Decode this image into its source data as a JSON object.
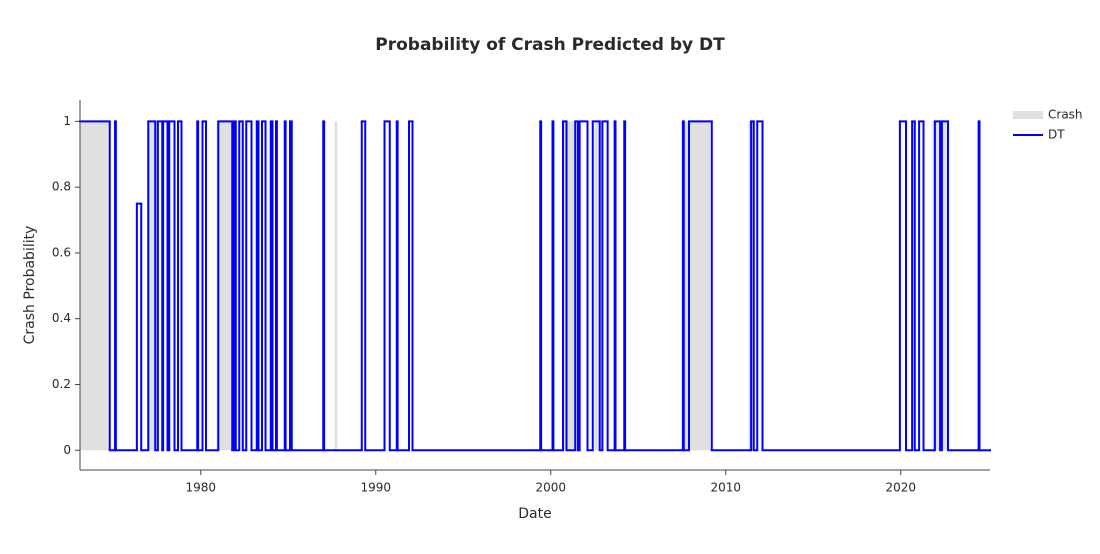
{
  "chart_data": {
    "type": "step",
    "title": "Probability of Crash Predicted by DT",
    "x_label": "Date",
    "y_label": "Crash Probability",
    "xlim": [
      1973.1,
      2025.1
    ],
    "xticks": [
      1980,
      1990,
      2000,
      2010,
      2020
    ],
    "ylim": [
      -0.06,
      1.065
    ],
    "yticks": [
      0,
      0.2,
      0.4,
      0.6,
      0.8,
      1
    ],
    "legend": "top-right",
    "series": [
      {
        "name": "Crash",
        "color": "#e0e0e0",
        "style": "area",
        "x": [
          1973.1,
          1974.8,
          1977.0,
          1977.55,
          1980.9,
          1981.9,
          1987.65,
          1987.8,
          2000.65,
          2001.4,
          2002.5,
          2002.8,
          2007.55,
          2009.1,
          2011.3,
          2011.6,
          2021.8,
          2022.7,
          2025.1
        ],
        "values": [
          1,
          0,
          1,
          0,
          1,
          0,
          1,
          0,
          1,
          0,
          1,
          0,
          1,
          0,
          1,
          0,
          1,
          0,
          0
        ]
      },
      {
        "name": "DT",
        "color": "#0000ff",
        "style": "line",
        "x": [
          1973.1,
          1974.8,
          1975.1,
          1975.15,
          1976.35,
          1976.6,
          1977.0,
          1977.4,
          1977.55,
          1977.8,
          1977.85,
          1978.1,
          1978.2,
          1978.5,
          1978.7,
          1978.9,
          1979.8,
          1979.85,
          1980.1,
          1980.3,
          1981.0,
          1981.8,
          1981.9,
          1982.0,
          1982.2,
          1982.4,
          1982.6,
          1982.9,
          1983.2,
          1983.3,
          1983.5,
          1983.7,
          1984.0,
          1984.1,
          1984.3,
          1984.35,
          1984.8,
          1984.85,
          1985.1,
          1985.2,
          1987.0,
          1987.05,
          1989.2,
          1989.4,
          1990.5,
          1990.8,
          1991.2,
          1991.25,
          1991.9,
          1992.1,
          1999.4,
          1999.45,
          2000.1,
          2000.15,
          2000.7,
          2000.9,
          2001.4,
          2001.55,
          2001.65,
          2002.1,
          2002.4,
          2002.8,
          2002.95,
          2003.25,
          2003.65,
          2003.7,
          2004.2,
          2004.25,
          2007.55,
          2007.6,
          2007.9,
          2009.2,
          2011.45,
          2011.6,
          2011.8,
          2012.1,
          2019.95,
          2020.3,
          2020.65,
          2020.8,
          2021.05,
          2021.3,
          2021.95,
          2022.25,
          2022.35,
          2022.7,
          2024.45,
          2024.5,
          2025.1
        ],
        "values": [
          1,
          0,
          1,
          0,
          0.75,
          0,
          1,
          0,
          1,
          0,
          1,
          0,
          1,
          0,
          1,
          0,
          1,
          0,
          1,
          0,
          1,
          0,
          1,
          0,
          1,
          0,
          1,
          0,
          1,
          0,
          1,
          0,
          1,
          0,
          1,
          0,
          1,
          0,
          1,
          0,
          1,
          0,
          1,
          0,
          1,
          0,
          1,
          0,
          1,
          0,
          1,
          0,
          1,
          0,
          1,
          0,
          1,
          0,
          1,
          0,
          1,
          0,
          1,
          0,
          1,
          0,
          1,
          0,
          1,
          0,
          1,
          0,
          1,
          0,
          1,
          0,
          1,
          0,
          1,
          0,
          1,
          0,
          1,
          0,
          1,
          0,
          1,
          0,
          0
        ]
      }
    ]
  }
}
